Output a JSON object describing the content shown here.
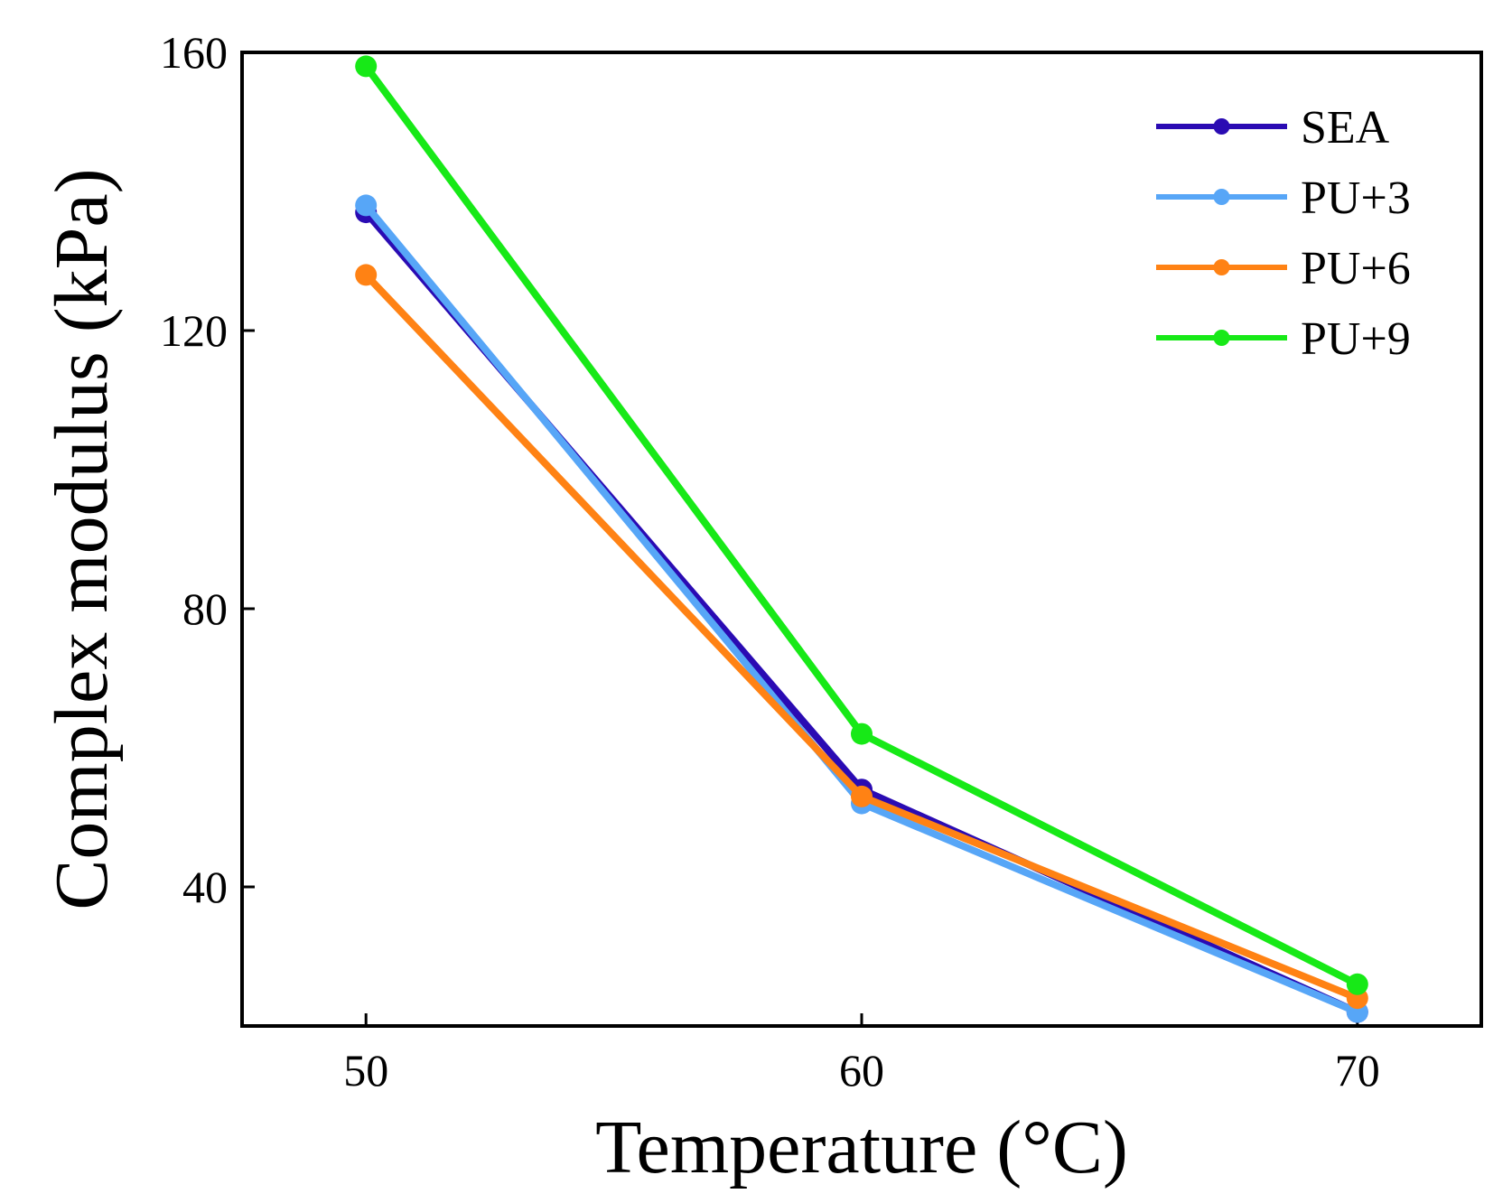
{
  "chart_data": {
    "type": "line",
    "title": "",
    "xlabel": "Temperature (°C)",
    "ylabel": "Complex modulus (kPa)",
    "x": [
      50,
      60,
      70
    ],
    "xlim": [
      47.5,
      72.5
    ],
    "ylim": [
      20,
      160
    ],
    "xticks": [
      50,
      60,
      70
    ],
    "yticks": [
      40,
      80,
      120,
      160
    ],
    "xtick_labels": [
      "50",
      "60",
      "70"
    ],
    "ytick_labels": [
      "40",
      "80",
      "120",
      "160"
    ],
    "grid": false,
    "legend_position": "top-right",
    "series": [
      {
        "name": "SEA",
        "color": "#2a0bb3",
        "values": [
          137,
          54,
          22
        ]
      },
      {
        "name": "PU+3",
        "color": "#57a6f7",
        "values": [
          138,
          52,
          22
        ]
      },
      {
        "name": "PU+6",
        "color": "#ff8214",
        "values": [
          128,
          53,
          24
        ]
      },
      {
        "name": "PU+9",
        "color": "#17e917",
        "values": [
          158,
          62,
          26
        ]
      }
    ]
  }
}
